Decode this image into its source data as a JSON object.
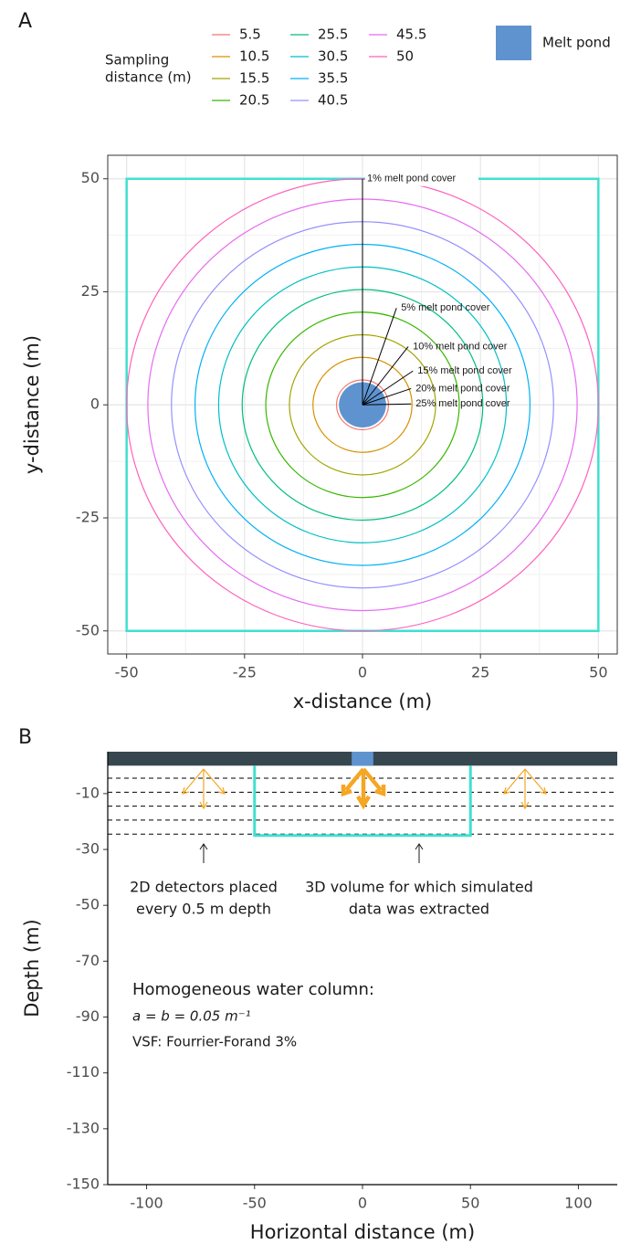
{
  "chart_data": [
    {
      "type": "circles",
      "panel_label": "A",
      "x_label": "x-distance (m)",
      "y_label": "y-distance (m)",
      "xlim": [
        -54,
        54
      ],
      "ylim": [
        -55.1,
        55.2
      ],
      "xticks": [
        -50,
        -25,
        0,
        25,
        50
      ],
      "yticks": [
        -50,
        -25,
        0,
        25,
        50
      ],
      "minor_ticks": [
        -37.5,
        -12.5,
        12.5,
        37.5
      ],
      "grid": true,
      "legend_title": [
        "Sampling",
        "distance (m)"
      ],
      "series": [
        {
          "name": "5.5",
          "color": "#F8766D",
          "value": 5.5
        },
        {
          "name": "10.5",
          "color": "#D89000",
          "value": 10.5
        },
        {
          "name": "15.5",
          "color": "#A3A500",
          "value": 15.5
        },
        {
          "name": "20.5",
          "color": "#39B600",
          "value": 20.5
        },
        {
          "name": "25.5",
          "color": "#00BF7D",
          "value": 25.5
        },
        {
          "name": "30.5",
          "color": "#00BFC4",
          "value": 30.5
        },
        {
          "name": "35.5",
          "color": "#00B0F6",
          "value": 35.5
        },
        {
          "name": "40.5",
          "color": "#9590FF",
          "value": 40.5
        },
        {
          "name": "45.5",
          "color": "#E76BF3",
          "value": 45.5
        },
        {
          "name": "50",
          "color": "#FF62BC",
          "value": 50
        }
      ],
      "pond": {
        "name": "Melt pond",
        "color": "#5E93CF",
        "radius": 5
      },
      "box": {
        "color": "#40E0D0",
        "half_width": 50
      },
      "annotations": [
        {
          "text": "1% melt pond cover",
          "x": 0,
          "y": 50
        },
        {
          "text": "5% melt pond cover",
          "x": 7.2,
          "y": 21.4
        },
        {
          "text": "10% melt pond cover",
          "x": 9.7,
          "y": 12.9
        },
        {
          "text": "15% melt pond cover",
          "x": 10.7,
          "y": 7.5
        },
        {
          "text": "20% melt pond cover",
          "x": 10.3,
          "y": 3.6
        },
        {
          "text": "25% melt pond cover",
          "x": 10.3,
          "y": 0.2
        }
      ]
    },
    {
      "type": "depth_profile",
      "panel_label": "B",
      "x_label": "Horizontal distance (m)",
      "y_label": "Depth (m)",
      "xlim": [
        -118,
        118
      ],
      "ylim": [
        -150,
        5
      ],
      "xticks": [
        -100,
        -50,
        0,
        50,
        100
      ],
      "yticks": [
        -10,
        -30,
        -50,
        -70,
        -90,
        -110,
        -130,
        -150
      ],
      "surface": {
        "color": "#37474F",
        "top": 5,
        "bottom": 0
      },
      "pond": {
        "color": "#5E93CF",
        "half_width": 5
      },
      "detector_depths": [
        -4.5,
        -9.5,
        -14.5,
        -19.5,
        -24.5
      ],
      "volume": {
        "color": "#40E0D0",
        "half_width": 50,
        "depth": -25
      },
      "detector_note": [
        "2D detectors placed",
        "every 0.5 m depth"
      ],
      "volume_note": [
        "3D volume for which simulated",
        "data was extracted"
      ],
      "water_title": "Homogeneous water column:",
      "water_coefficients": "a = b = 0.05 m⁻¹",
      "water_vsf": "VSF: Fourrier-Forand 3%"
    }
  ]
}
